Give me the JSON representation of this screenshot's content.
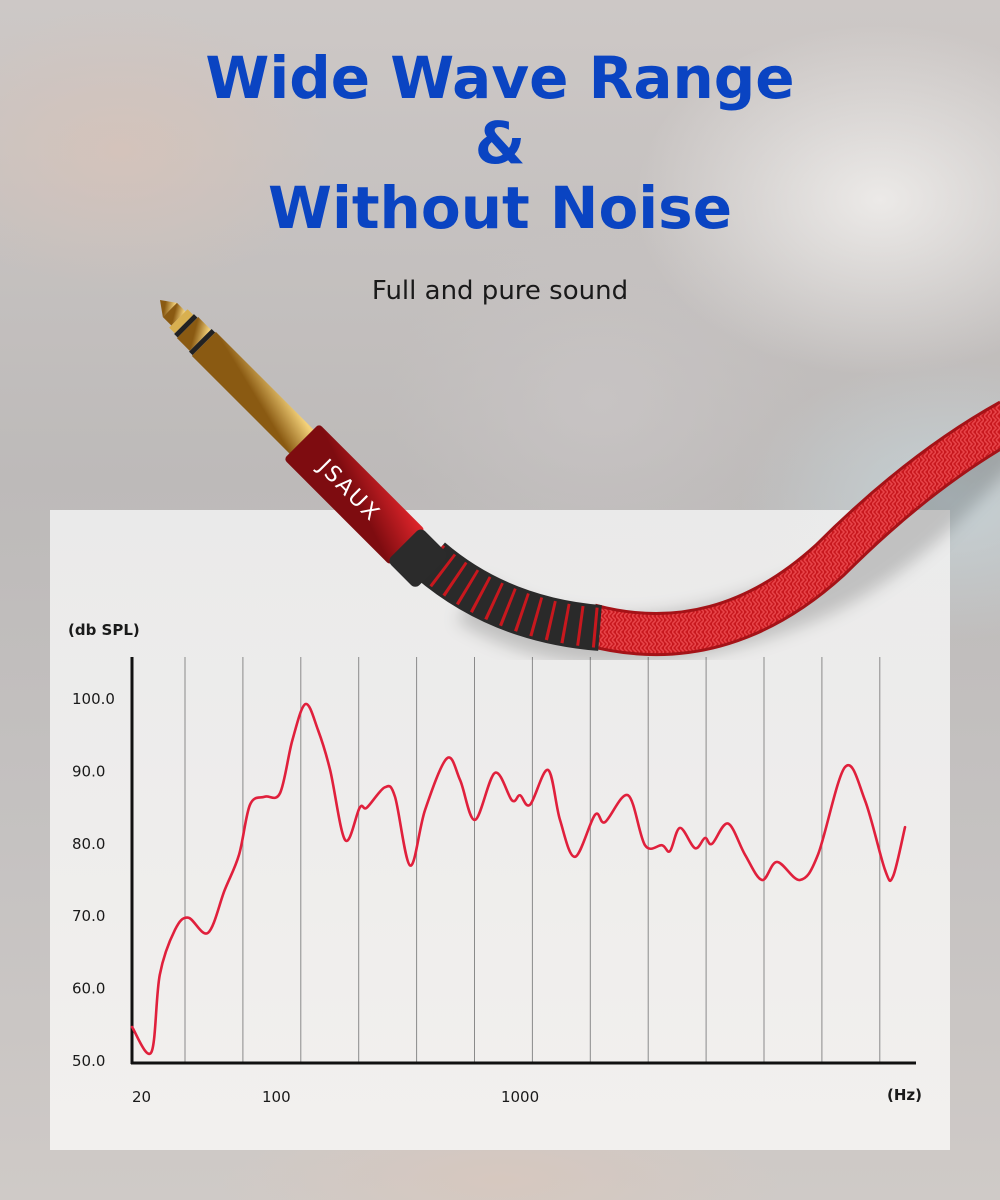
{
  "headline": {
    "lines": [
      "Wide Wave Range",
      "&",
      "Without Noise"
    ],
    "color": "#0a44c2"
  },
  "subtitle": "Full and pure sound",
  "product": {
    "brand_logo": "JSAUX",
    "cable_color": "#d01e24",
    "plug_color": "#d4a640"
  },
  "chart_data": {
    "type": "line",
    "title": "",
    "ylabel": "(db SPL)",
    "xlabel": "(Hz)",
    "x_scale": "log",
    "xlim": [
      20,
      32660
    ],
    "ylim": [
      50,
      100
    ],
    "yticks": [
      {
        "value": 100,
        "label": "100.0"
      },
      {
        "value": 90,
        "label": "90.0"
      },
      {
        "value": 80,
        "label": "80.0"
      },
      {
        "value": 70,
        "label": "70.0"
      },
      {
        "value": 60,
        "label": "60.0"
      },
      {
        "value": 50,
        "label": "50.0"
      }
    ],
    "xticks": [
      {
        "value": 20,
        "label": "20"
      },
      {
        "value": 100,
        "label": "100"
      },
      {
        "value": 1000,
        "label": "1000"
      }
    ],
    "grid": "vertical",
    "line_color": "#e0203c",
    "series": [
      {
        "x": [
          20,
          24,
          26,
          30,
          34,
          41,
          48,
          55,
          61,
          70,
          81,
          91,
          103,
          116,
          130,
          150,
          172,
          184,
          218,
          240,
          277,
          319,
          392,
          444,
          511,
          617,
          725,
          782,
          860,
          1019,
          1141,
          1315,
          1588,
          1746,
          2170,
          2548,
          2992,
          3226,
          3546,
          4086,
          4490,
          4798,
          5580,
          6552,
          7694,
          8868,
          11020,
          13060,
          16860,
          20360,
          24600,
          26540,
          29720
        ],
        "y": [
          54.7,
          51.2,
          61.9,
          68.1,
          69.8,
          67.7,
          73.6,
          78.5,
          85.4,
          86.5,
          87.0,
          94.3,
          99.3,
          95.7,
          90.2,
          80.5,
          85,
          85,
          87.8,
          86.5,
          77,
          84.7,
          91.8,
          88.8,
          83.3,
          89.8,
          86,
          86.7,
          85.4,
          90.2,
          83.3,
          78.2,
          84,
          83,
          86.7,
          79.8,
          79.8,
          79,
          82.2,
          79.4,
          80.8,
          80,
          82.8,
          78.5,
          75,
          77.5,
          75,
          78.5,
          90.6,
          86,
          76.4,
          75.5,
          82.3
        ]
      }
    ]
  }
}
